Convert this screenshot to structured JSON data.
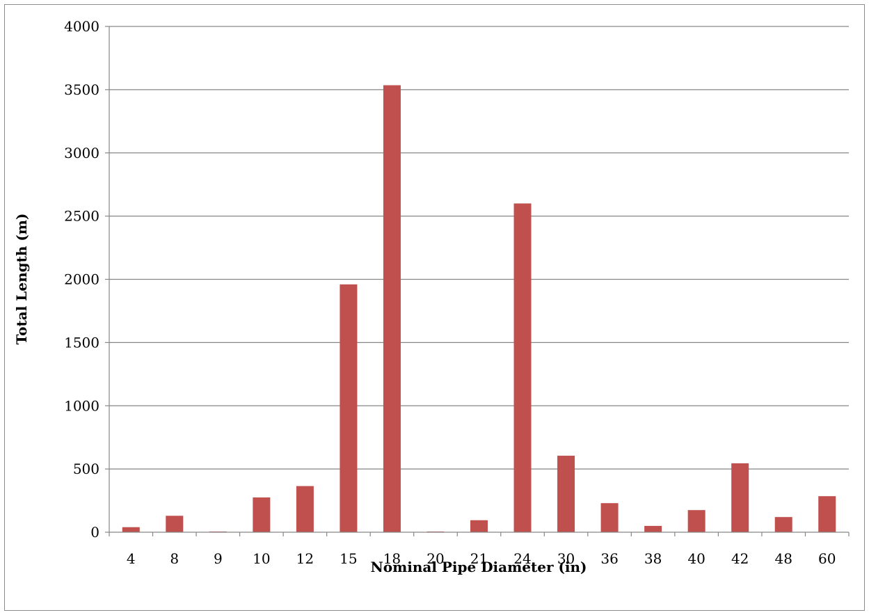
{
  "chart_data": {
    "type": "bar",
    "title": "",
    "xlabel": "Nominal Pipe Diameter (in)",
    "ylabel": "Total Length (m)",
    "categories": [
      "4",
      "8",
      "9",
      "10",
      "12",
      "15",
      "18",
      "20",
      "21",
      "24",
      "30",
      "36",
      "38",
      "40",
      "42",
      "48",
      "60"
    ],
    "values": [
      40,
      130,
      3,
      275,
      365,
      1960,
      3535,
      3,
      95,
      2600,
      605,
      230,
      50,
      175,
      545,
      120,
      285
    ],
    "ylim": [
      0,
      4000
    ],
    "yticks": [
      0,
      500,
      1000,
      1500,
      2000,
      2500,
      3000,
      3500,
      4000
    ],
    "grid": true,
    "legend": "none",
    "bar_color": "#c0504d",
    "grid_color": "#868686"
  }
}
